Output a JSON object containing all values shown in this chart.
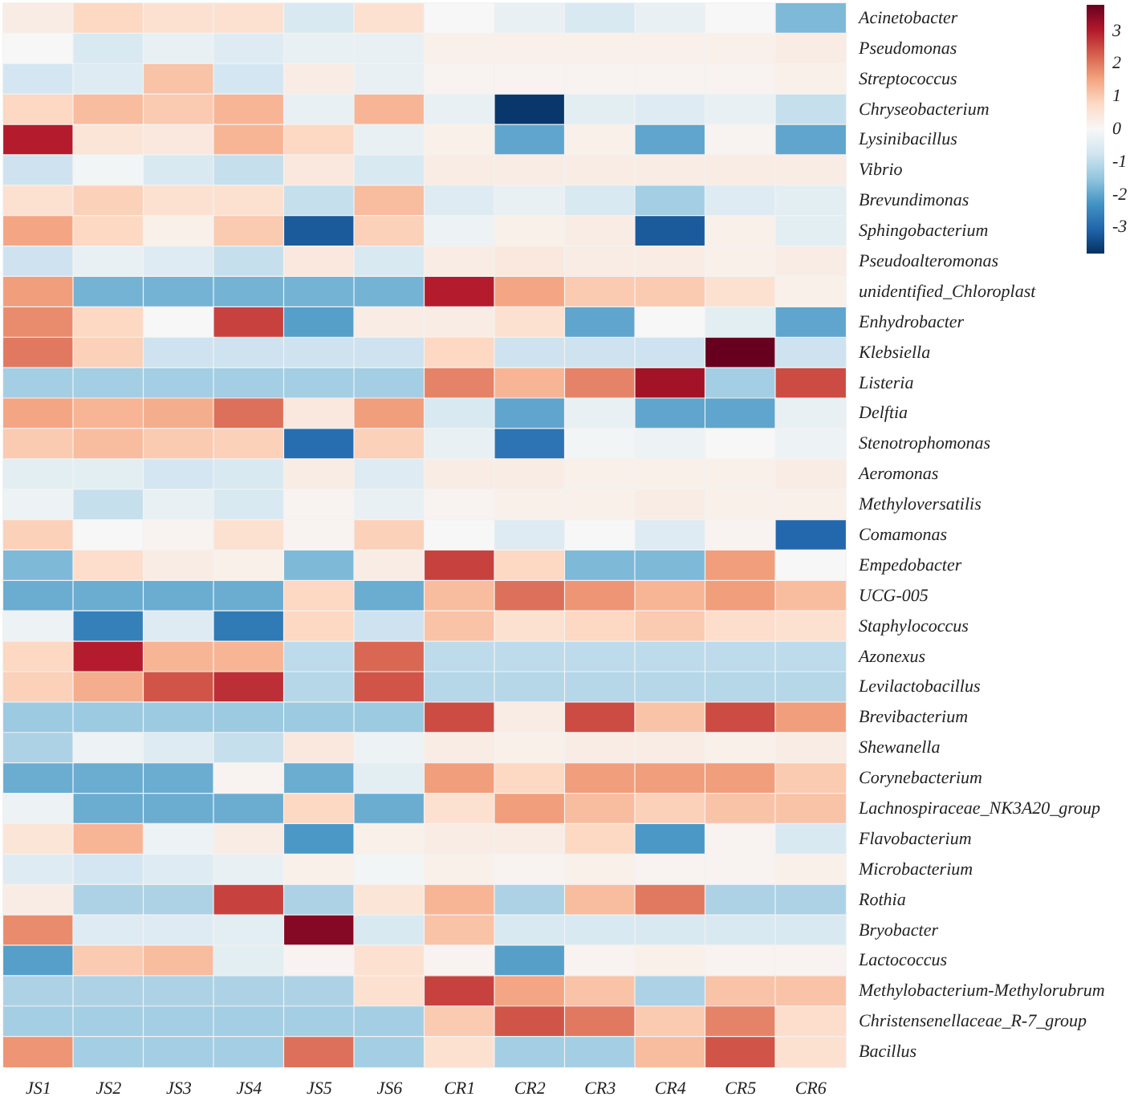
{
  "chart_data": {
    "type": "heatmap",
    "categories": [
      "JS1",
      "JS2",
      "JS3",
      "JS4",
      "JS5",
      "JS6",
      "CR1",
      "CR2",
      "CR3",
      "CR4",
      "CR5",
      "CR6"
    ],
    "y_categories": [
      "Acinetobacter",
      "Pseudomonas",
      "Streptococcus",
      "Chryseobacterium",
      "Lysinibacillus",
      "Vibrio",
      "Brevundimonas",
      "Sphingobacterium",
      "Pseudoalteromonas",
      "unidentified_Chloroplast",
      "Enhydrobacter",
      "Klebsiella",
      "Listeria",
      "Delftia",
      "Stenotrophomonas",
      "Aeromonas",
      "Methyloversatilis",
      "Comamonas",
      "Empedobacter",
      "UCG-005",
      "Staphylococcus",
      "Azonexus",
      "Levilactobacillus",
      "Brevibacterium",
      "Shewanella",
      "Corynebacterium",
      "Lachnospiraceae_NK3A20_group",
      "Flavobacterium",
      "Microbacterium",
      "Rothia",
      "Bryobacter",
      "Lactococcus",
      "Methylobacterium-Methylorubrum",
      "Christensenellaceae_R-7_group",
      "Bacillus"
    ],
    "cells": [
      [
        0.3,
        0.8,
        0.6,
        0.6,
        -0.6,
        0.6,
        0,
        -0.3,
        -0.6,
        -0.3,
        0,
        -1.7
      ],
      [
        0,
        -0.6,
        -0.3,
        -0.5,
        -0.3,
        -0.3,
        0.2,
        0.2,
        0.2,
        0.2,
        0.2,
        0.3
      ],
      [
        -0.7,
        -0.5,
        1.1,
        -0.7,
        0.3,
        -0.3,
        0.1,
        0.1,
        0.1,
        0.1,
        0.1,
        0.2
      ],
      [
        0.8,
        1.2,
        1.0,
        1.3,
        -0.3,
        1.3,
        -0.3,
        -3.7,
        -0.4,
        -0.5,
        -0.3,
        -0.9
      ],
      [
        3.0,
        0.5,
        0.4,
        1.3,
        0.8,
        -0.3,
        0.2,
        -2.0,
        0.2,
        -2.0,
        0.1,
        -2.0
      ],
      [
        -0.8,
        -0.1,
        -0.6,
        -0.9,
        0.4,
        -0.6,
        0.3,
        0.3,
        0.3,
        0.3,
        0.3,
        0.3
      ],
      [
        0.6,
        0.9,
        0.6,
        0.6,
        -0.9,
        1.2,
        -0.5,
        -0.3,
        -0.6,
        -1.3,
        -0.5,
        -0.4
      ],
      [
        1.5,
        0.8,
        0.2,
        1.0,
        -3.2,
        0.9,
        -0.2,
        0.2,
        0.3,
        -3.2,
        0.2,
        -0.4
      ],
      [
        -0.8,
        -0.3,
        -0.5,
        -0.9,
        0.4,
        -0.6,
        0.3,
        0.4,
        0.3,
        0.3,
        0.2,
        0.3
      ],
      [
        1.6,
        -1.8,
        -1.8,
        -1.8,
        -1.8,
        -1.8,
        3.0,
        1.5,
        1.0,
        1.0,
        0.6,
        0.2
      ],
      [
        1.8,
        0.8,
        0,
        2.6,
        -2.1,
        0.3,
        0.3,
        0.6,
        -2.0,
        0,
        -0.4,
        -2.0
      ],
      [
        2.0,
        0.9,
        -0.8,
        -0.8,
        -0.8,
        -0.8,
        0.8,
        -0.8,
        -0.8,
        -0.8,
        3.8,
        -0.8
      ],
      [
        -1.3,
        -1.3,
        -1.3,
        -1.3,
        -1.3,
        -1.3,
        1.9,
        1.3,
        1.9,
        3.2,
        -1.3,
        2.5
      ],
      [
        1.5,
        1.3,
        1.4,
        2.1,
        0.4,
        1.6,
        -0.6,
        -2.0,
        -0.3,
        -2.0,
        -2.0,
        -0.3
      ],
      [
        1.0,
        1.2,
        1.0,
        0.9,
        -2.9,
        0.9,
        -0.3,
        -2.8,
        -0.1,
        -0.2,
        0,
        -0.2
      ],
      [
        -0.4,
        -0.4,
        -0.7,
        -0.6,
        0.3,
        -0.5,
        0.3,
        0.3,
        0.2,
        0.2,
        0.2,
        0.3
      ],
      [
        -0.2,
        -0.9,
        -0.3,
        -0.6,
        0.1,
        -0.3,
        0.1,
        0.2,
        0.2,
        0.3,
        0.2,
        0.2
      ],
      [
        0.9,
        0,
        0.1,
        0.6,
        0.1,
        0.9,
        0,
        -0.5,
        0,
        -0.5,
        0.1,
        -3.0
      ],
      [
        -1.7,
        0.7,
        0.3,
        0.2,
        -1.7,
        0.3,
        2.6,
        0.8,
        -1.7,
        -1.7,
        1.6,
        0
      ],
      [
        -1.9,
        -1.9,
        -1.9,
        -1.9,
        0.8,
        -1.9,
        1.2,
        2.1,
        1.7,
        1.3,
        1.6,
        1.2
      ],
      [
        -0.2,
        -2.6,
        -0.5,
        -2.7,
        0.8,
        -0.8,
        1.1,
        0.6,
        0.8,
        1.0,
        0.7,
        0.6
      ],
      [
        0.8,
        3.0,
        1.3,
        1.3,
        -1.0,
        2.2,
        -1.0,
        -1.0,
        -1.0,
        -1.0,
        -1.0,
        -1.0
      ],
      [
        0.9,
        1.4,
        2.4,
        2.8,
        -1.1,
        2.4,
        -1.1,
        -1.1,
        -1.1,
        -1.1,
        -1.1,
        -1.1
      ],
      [
        -1.4,
        -1.4,
        -1.4,
        -1.4,
        -1.4,
        -1.4,
        2.5,
        0.3,
        2.5,
        1.1,
        2.5,
        1.6
      ],
      [
        -1.2,
        -0.2,
        -0.5,
        -0.9,
        0.4,
        -0.2,
        0.3,
        0.2,
        0.3,
        0.3,
        0.2,
        0.3
      ],
      [
        -1.9,
        -1.9,
        -1.9,
        0.1,
        -1.9,
        -0.4,
        1.6,
        0.8,
        1.6,
        1.6,
        1.6,
        1.0
      ],
      [
        -0.2,
        -1.9,
        -1.9,
        -1.9,
        0.8,
        -1.9,
        0.6,
        1.6,
        1.2,
        0.9,
        1.1,
        1.1
      ],
      [
        0.5,
        1.3,
        -0.2,
        0.3,
        -2.2,
        0.2,
        0.3,
        0.3,
        0.8,
        -2.2,
        0.1,
        -0.6
      ],
      [
        -0.5,
        -0.7,
        -0.5,
        -0.3,
        0.2,
        -0.1,
        0.2,
        0.1,
        0.2,
        0.1,
        0.1,
        0.2
      ],
      [
        0.3,
        -1.2,
        -1.2,
        2.6,
        -1.2,
        0.5,
        1.3,
        -1.2,
        1.2,
        2.0,
        -1.2,
        -1.2
      ],
      [
        1.8,
        -0.5,
        -0.5,
        -0.4,
        3.5,
        -0.6,
        1.1,
        -0.6,
        -0.6,
        -0.6,
        -0.6,
        -0.6
      ],
      [
        -2.1,
        1.0,
        1.2,
        -0.4,
        0.1,
        0.6,
        0.1,
        -2.1,
        0.1,
        0.2,
        0.1,
        0.1
      ],
      [
        -1.2,
        -1.2,
        -1.2,
        -1.2,
        -1.2,
        0.6,
        2.6,
        1.5,
        1.1,
        -1.2,
        1.1,
        1.1
      ],
      [
        -1.3,
        -1.3,
        -1.3,
        -1.3,
        -1.3,
        -1.3,
        1.0,
        2.4,
        2.0,
        1.0,
        1.9,
        0.7
      ],
      [
        1.7,
        -1.3,
        -1.3,
        -1.3,
        2.1,
        -1.3,
        0.6,
        -1.3,
        -1.3,
        1.2,
        2.4,
        0.6
      ]
    ],
    "clim": [
      -3.8,
      3.8
    ],
    "cticks": [
      -3,
      -2,
      -1,
      0,
      1,
      2,
      3
    ]
  }
}
